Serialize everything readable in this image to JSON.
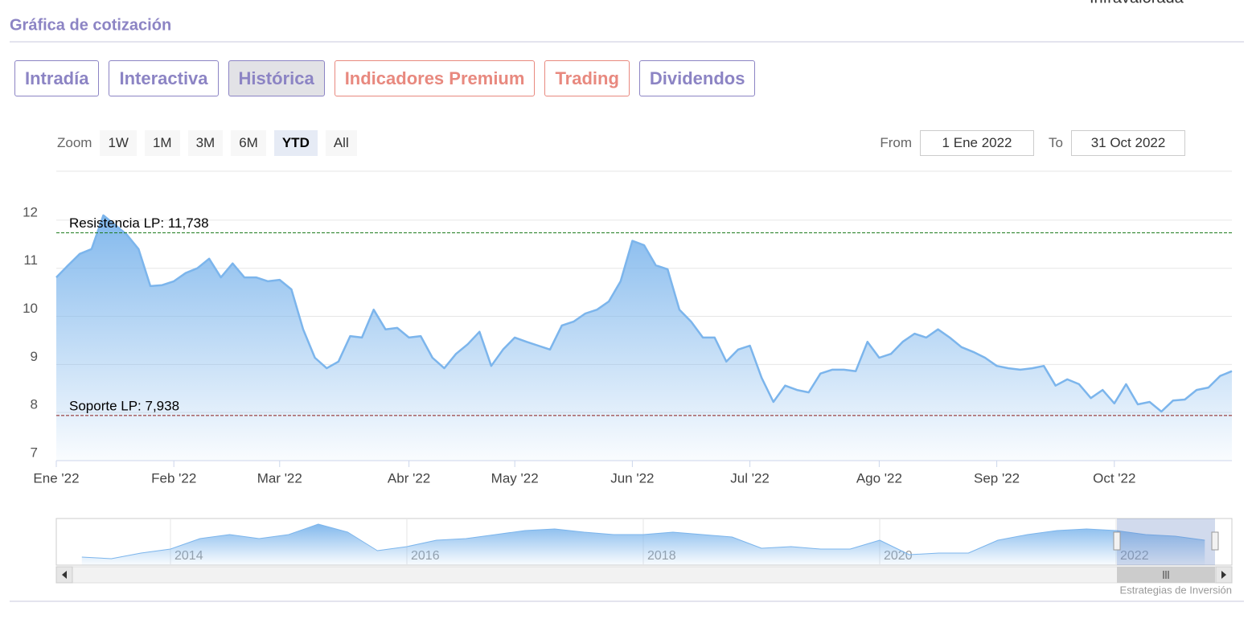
{
  "header": {
    "rating_label": "Infravalorada"
  },
  "section_title": "Gráfica de cotización",
  "tabs": [
    {
      "label": "Intradía",
      "color": "#8c84c4"
    },
    {
      "label": "Interactiva",
      "color": "#8c84c4"
    },
    {
      "label": "Histórica",
      "color": "#8c84c4",
      "active": true
    },
    {
      "label": "Indicadores Premium",
      "color": "#e8897f"
    },
    {
      "label": "Trading",
      "color": "#e8897f"
    },
    {
      "label": "Dividendos",
      "color": "#8c84c4"
    }
  ],
  "zoom": {
    "label": "Zoom",
    "buttons": [
      {
        "label": "1W"
      },
      {
        "label": "1M"
      },
      {
        "label": "3M"
      },
      {
        "label": "6M"
      },
      {
        "label": "YTD",
        "active": true
      },
      {
        "label": "All"
      }
    ]
  },
  "date_range": {
    "from_label": "From",
    "from": "1 Ene 2022",
    "to_label": "To",
    "to": "31 Oct 2022"
  },
  "chart_data": [
    {
      "type": "area",
      "color": "#7cb5ec",
      "categories": [
        "Ene '22",
        null,
        null,
        null,
        null,
        null,
        null,
        null,
        null,
        null,
        "Feb '22",
        null,
        null,
        null,
        null,
        null,
        null,
        null,
        null,
        "Mar '22",
        null,
        null,
        null,
        null,
        null,
        null,
        null,
        null,
        null,
        null,
        "Abr '22",
        null,
        null,
        null,
        null,
        null,
        null,
        null,
        null,
        "May '22",
        null,
        null,
        null,
        null,
        null,
        null,
        null,
        null,
        null,
        "Jun '22",
        null,
        null,
        null,
        null,
        null,
        null,
        null,
        null,
        null,
        "Jul '22",
        null,
        null,
        null,
        null,
        null,
        null,
        null,
        null,
        null,
        null,
        "Ago '22",
        null,
        null,
        null,
        null,
        null,
        null,
        null,
        null,
        null,
        "Sep '22",
        null,
        null,
        null,
        null,
        null,
        null,
        null,
        null,
        null,
        "Oct '22",
        null,
        null,
        null,
        null,
        null,
        null,
        null,
        null,
        null,
        null
      ],
      "values": [
        10.81,
        11.06,
        11.3,
        11.4,
        12.1,
        11.9,
        11.7,
        11.4,
        10.63,
        10.65,
        10.73,
        10.9,
        11.0,
        11.2,
        10.81,
        11.1,
        10.81,
        10.81,
        10.73,
        10.76,
        10.56,
        9.73,
        9.14,
        8.92,
        9.06,
        9.59,
        9.56,
        10.14,
        9.73,
        9.76,
        9.56,
        9.59,
        9.14,
        8.92,
        9.22,
        9.42,
        9.68,
        8.97,
        9.31,
        9.56,
        9.47,
        9.39,
        9.31,
        9.81,
        9.89,
        10.06,
        10.14,
        10.31,
        10.73,
        11.57,
        11.48,
        11.06,
        10.98,
        10.14,
        9.89,
        9.56,
        9.56,
        9.06,
        9.31,
        9.39,
        8.72,
        8.22,
        8.56,
        8.47,
        8.42,
        8.81,
        8.89,
        8.89,
        8.86,
        9.47,
        9.14,
        9.22,
        9.47,
        9.64,
        9.56,
        9.73,
        9.56,
        9.36,
        9.26,
        9.14,
        8.97,
        8.92,
        8.89,
        8.92,
        8.97,
        8.56,
        8.69,
        8.59,
        8.3,
        8.47,
        8.19,
        8.59,
        8.17,
        8.22,
        8.02,
        8.25,
        8.27,
        8.47,
        8.52,
        8.76,
        8.86
      ],
      "ylim": [
        7,
        12.5
      ],
      "yticks": [
        7,
        8,
        9,
        10,
        11,
        12
      ],
      "grid": true,
      "plot_lines": [
        {
          "value": 11.738,
          "label": "Resistencia LP: 11,738",
          "color": "#1a7a1a"
        },
        {
          "value": 7.938,
          "label": "Soporte LP: 7,938",
          "color": "#8b1a1a"
        }
      ]
    },
    {
      "type": "area",
      "color": "#7cb5ec",
      "categories": [
        null,
        null,
        null,
        "2014",
        null,
        null,
        null,
        null,
        null,
        null,
        null,
        "2016",
        null,
        null,
        null,
        null,
        null,
        null,
        null,
        "2018",
        null,
        null,
        null,
        null,
        null,
        null,
        null,
        "2020",
        null,
        null,
        null,
        null,
        null,
        null,
        null,
        "2022",
        null,
        null,
        null
      ],
      "values": [
        4.72,
        4.38,
        5.59,
        6.45,
        8.69,
        9.55,
        8.69,
        9.55,
        11.79,
        10.07,
        6.1,
        6.97,
        8.34,
        8.69,
        9.55,
        10.41,
        10.76,
        10.07,
        9.55,
        9.55,
        10.07,
        9.55,
        9.03,
        6.62,
        6.97,
        6.45,
        6.45,
        8.34,
        5.24,
        5.59,
        5.59,
        8.34,
        9.55,
        10.41,
        10.76,
        10.41,
        9.55,
        9.2,
        8.34
      ],
      "ylim": [
        3,
        13
      ]
    }
  ],
  "credit": "Estrategias de Inversión"
}
